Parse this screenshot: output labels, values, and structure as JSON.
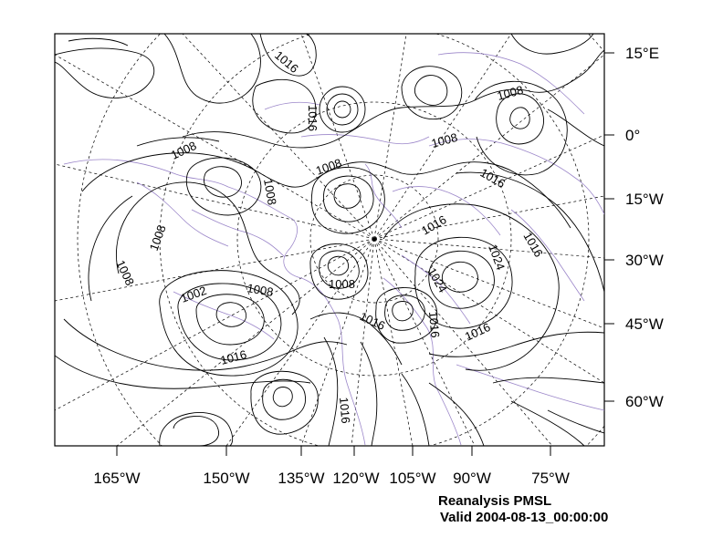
{
  "map": {
    "lon_labels": [
      "165°W",
      "150°W",
      "135°W",
      "120°W",
      "105°W",
      "90°W",
      "75°W"
    ],
    "lat_labels": [
      "15°E",
      "0°",
      "15°W",
      "30°W",
      "45°W",
      "60°W"
    ],
    "contour_labels": [
      "1016",
      "1016",
      "1008",
      "1008",
      "1008",
      "1008",
      "1008",
      "1016",
      "1016",
      "1016",
      "1008",
      "1008",
      "1002",
      "1008",
      "1008",
      "1024",
      "1024",
      "1016",
      "1016",
      "1016",
      "1016",
      "1016"
    ],
    "colors": {
      "contour": "#000000",
      "graticule": "#000000",
      "coastline": "#9b86c9"
    },
    "caption": {
      "line1": "Reanalysis PMSL",
      "line2": "Valid 2004-08-13_00:00:00"
    }
  }
}
